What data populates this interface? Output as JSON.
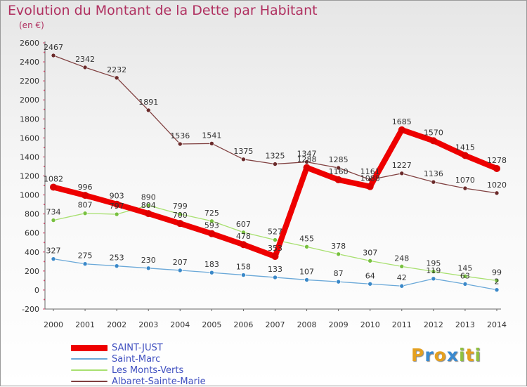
{
  "title": "Evolution du Montant de la Dette par Habitant",
  "subtitle": "(en €)",
  "logo": {
    "text": "Proxiti",
    "letters": [
      {
        "ch": "P",
        "color": "#e4a020"
      },
      {
        "ch": "r",
        "color": "#3a8ad0"
      },
      {
        "ch": "o",
        "color": "#e4a020"
      },
      {
        "ch": "x",
        "color": "#3a8ad0"
      },
      {
        "ch": "i",
        "color": "#90c040"
      },
      {
        "ch": "t",
        "color": "#e4a020"
      },
      {
        "ch": "i",
        "color": "#90c040"
      }
    ]
  },
  "chart_data": {
    "type": "line",
    "title": "Evolution du Montant de la Dette par Habitant",
    "subtitle": "(en €)",
    "x": [
      2000,
      2001,
      2002,
      2003,
      2004,
      2005,
      2006,
      2007,
      2008,
      2009,
      2010,
      2011,
      2012,
      2013,
      2014
    ],
    "ylim": [
      -200,
      2600
    ],
    "yticks": [
      -200,
      0,
      200,
      400,
      600,
      800,
      1000,
      1200,
      1400,
      1600,
      1800,
      2000,
      2200,
      2400,
      2600
    ],
    "grid": false,
    "legend": "bottom-left",
    "series": [
      {
        "name": "SAINT-JUST",
        "color": "#ee0000",
        "point_color": "#dd0000",
        "weight": "bold",
        "values": [
          1082,
          996,
          903,
          804,
          700,
          593,
          478,
          353,
          1288,
          1160,
          1088,
          1685,
          1570,
          1415,
          1278
        ],
        "labels": [
          "1082",
          "996",
          "903",
          "804",
          "700",
          "593",
          "478",
          "353",
          "1288",
          "1160",
          "1088",
          "1685",
          "1570",
          "1415",
          "1278"
        ]
      },
      {
        "name": "Saint-Marc",
        "color": "#6aa8d8",
        "point_color": "#3a88c8",
        "weight": "thin",
        "values": [
          327,
          275,
          253,
          230,
          207,
          183,
          158,
          133,
          107,
          87,
          64,
          42,
          119,
          63,
          2
        ],
        "labels": [
          "327",
          "275",
          "253",
          "230",
          "207",
          "183",
          "158",
          "133",
          "107",
          "87",
          "64",
          "42",
          "119",
          "63",
          "2"
        ]
      },
      {
        "name": "Les Monts-Verts",
        "color": "#a8e070",
        "point_color": "#78c040",
        "weight": "thin",
        "values": [
          734,
          807,
          797,
          890,
          799,
          725,
          607,
          527,
          455,
          378,
          307,
          248,
          195,
          145,
          99
        ],
        "labels": [
          "734",
          "807",
          "797",
          "890",
          "799",
          "725",
          "607",
          "527",
          "455",
          "378",
          "307",
          "248",
          "195",
          "145",
          "99"
        ]
      },
      {
        "name": "Albaret-Sainte-Marie",
        "color": "#804040",
        "point_color": "#6a2a2a",
        "weight": "thin",
        "values": [
          2467,
          2342,
          2232,
          1891,
          1536,
          1541,
          1375,
          1325,
          1347,
          1285,
          1161,
          1227,
          1136,
          1070,
          1020
        ],
        "labels": [
          "2467",
          "2342",
          "2232",
          "1891",
          "1536",
          "1541",
          "1375",
          "1325",
          "1347",
          "1285",
          "1161",
          "1227",
          "1136",
          "1070",
          "1020"
        ]
      }
    ]
  }
}
